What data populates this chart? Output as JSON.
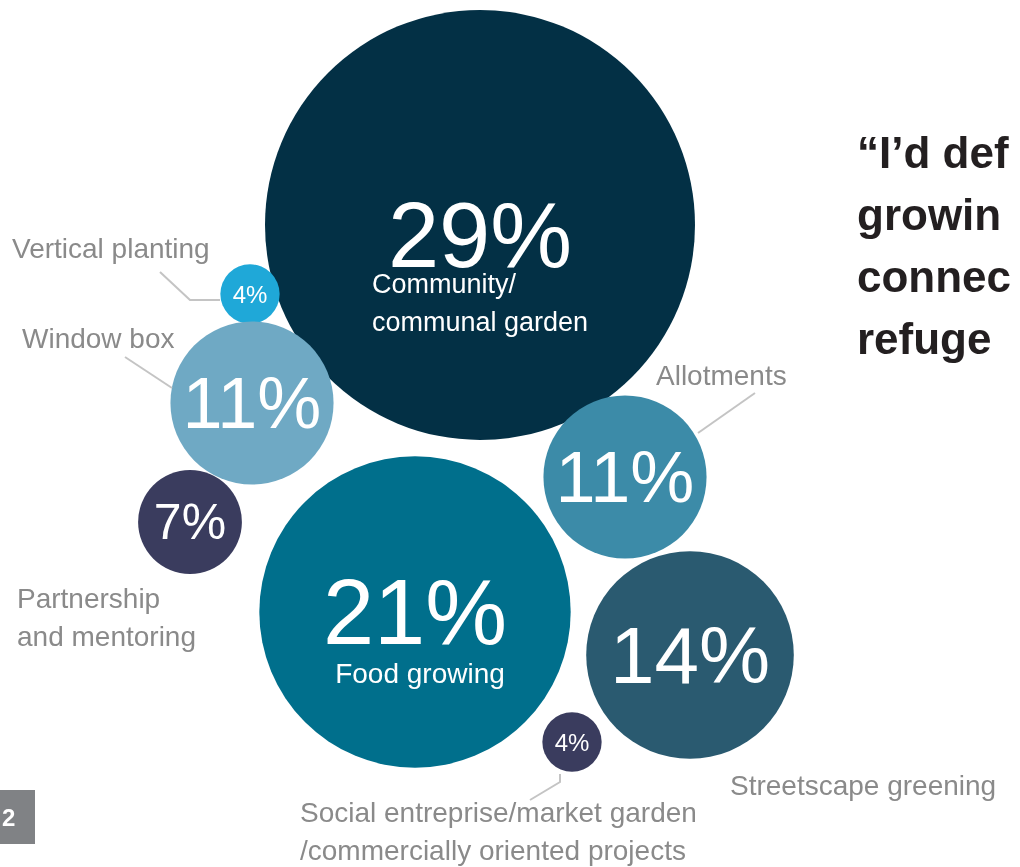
{
  "chart_data": {
    "type": "other",
    "categories": [
      "Community/ communal garden",
      "Vertical planting",
      "Window box",
      "Partnership and mentoring",
      "Food growing",
      "Allotments",
      "Streetscape greening",
      "Social entreprise/market garden /commercially oriented projects"
    ],
    "values": [
      29,
      4,
      11,
      7,
      21,
      11,
      14,
      4
    ],
    "value_labels": [
      "29%",
      "4%",
      "11%",
      "7%",
      "21%",
      "11%",
      "14%",
      "4%"
    ],
    "colors": [
      "#033045",
      "#1fa8d8",
      "#6fa9c4",
      "#3a3c5e",
      "#006f8c",
      "#3c8ba8",
      "#2a5a70",
      "#3a3c5e"
    ],
    "annotations": [
      "“I’d def",
      "growin",
      "connec",
      "refuge",
      "2"
    ]
  }
}
